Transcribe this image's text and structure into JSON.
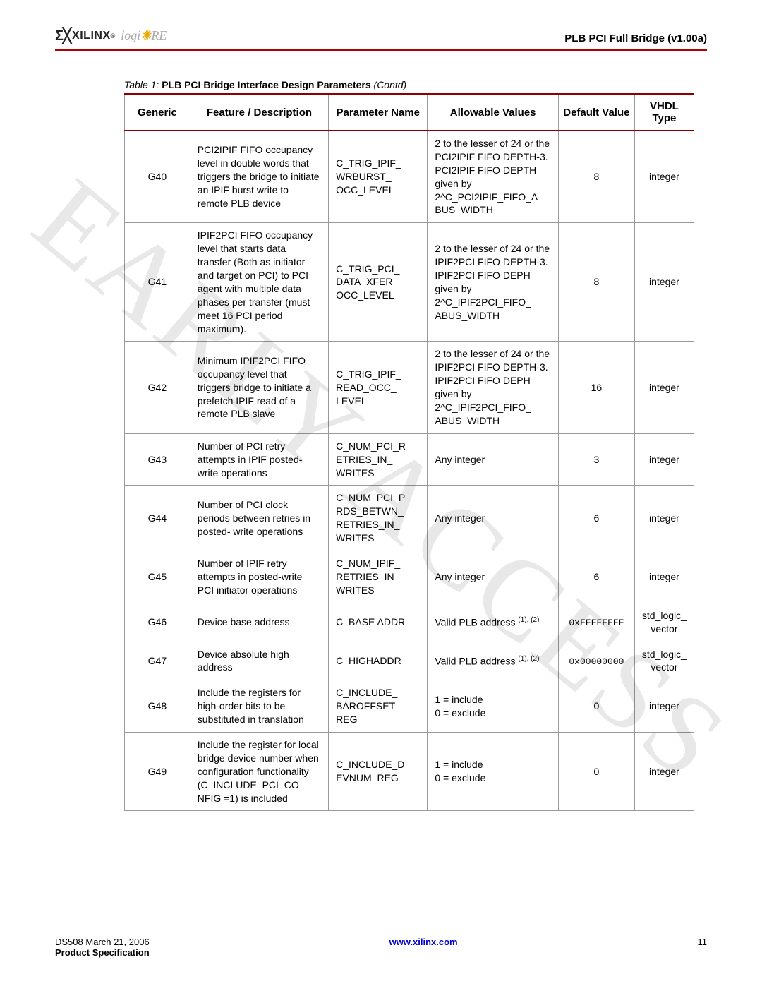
{
  "header": {
    "brand_symbol": "Σ╳",
    "brand_name": "XILINX",
    "sub_brand_prefix": "logi",
    "sub_brand_sun": "✺",
    "sub_brand_suffix": "RE",
    "doc_title": "PLB PCI Full Bridge (v1.00a)"
  },
  "watermark": "EARLY ACCESS",
  "table": {
    "caption_prefix": "Table  1:",
    "caption_title": "PLB PCI Bridge Interface Design Parameters",
    "caption_suffix": "(Contd)",
    "columns": [
      "Generic",
      "Feature / Description",
      "Parameter Name",
      "Allowable Values",
      "Default Value",
      "VHDL Type"
    ],
    "rows": [
      {
        "generic": "G40",
        "desc": "PCI2IPIF FIFO occupancy level in double words that triggers the bridge to initiate an IPIF burst write to remote PLB device",
        "name": "C_TRIG_IPIF_ WRBURST_ OCC_LEVEL",
        "allow": "2 to the lesser of 24 or the PCI2IPIF FIFO DEPTH-3. PCI2IPIF FIFO DEPTH given by 2^C_PCI2IPIF_FIFO_A BUS_WIDTH",
        "default": "8",
        "type": "integer"
      },
      {
        "generic": "G41",
        "desc": "IPIF2PCI FIFO occupancy level that starts data transfer (Both as initiator and target on PCI) to PCI agent with multiple data phases per transfer (must meet 16 PCI period maximum).",
        "name": "C_TRIG_PCI_ DATA_XFER_ OCC_LEVEL",
        "allow": "2 to the lesser of 24 or the IPIF2PCI FIFO DEPTH-3. IPIF2PCI FIFO DEPH given by 2^C_IPIF2PCI_FIFO_ ABUS_WIDTH",
        "default": "8",
        "type": "integer"
      },
      {
        "generic": "G42",
        "desc": "Minimum IPIF2PCI FIFO occupancy level that triggers bridge to initiate a prefetch IPIF read of a remote PLB slave",
        "name": "C_TRIG_IPIF_ READ_OCC_ LEVEL",
        "allow": "2 to the lesser of 24 or the IPIF2PCI FIFO DEPTH-3. IPIF2PCI FIFO DEPH given by 2^C_IPIF2PCI_FIFO_ ABUS_WIDTH",
        "default": "16",
        "type": "integer"
      },
      {
        "generic": "G43",
        "desc": "Number of PCI retry attempts in IPIF posted-write operations",
        "name": "C_NUM_PCI_R ETRIES_IN_ WRITES",
        "allow": "Any integer",
        "default": "3",
        "type": "integer"
      },
      {
        "generic": "G44",
        "desc": "Number of PCI clock periods between retries in posted- write operations",
        "name": "C_NUM_PCI_P RDS_BETWN_ RETRIES_IN_ WRITES",
        "allow": "Any integer",
        "default": "6",
        "type": "integer"
      },
      {
        "generic": "G45",
        "desc": "Number of IPIF retry attempts in posted-write PCI initiator operations",
        "name": "C_NUM_IPIF_ RETRIES_IN_ WRITES",
        "allow": "Any integer",
        "default": "6",
        "type": "integer"
      },
      {
        "generic": "G46",
        "desc": "Device base address",
        "name": "C_BASE ADDR",
        "allow_prefix": "Valid PLB address ",
        "allow_note": "(1), (2)",
        "default_mono": "0xFFFFFFFF",
        "type": "std_logic_ vector"
      },
      {
        "generic": "G47",
        "desc": "Device absolute high address",
        "name": "C_HIGHADDR",
        "allow_prefix": "Valid PLB address ",
        "allow_note": "(1), (2)",
        "default_mono": "0x00000000",
        "type": "std_logic_ vector"
      },
      {
        "generic": "G48",
        "desc": "Include the registers for high-order bits to be substituted in translation",
        "name": "C_INCLUDE_ BAROFFSET_ REG",
        "allow": "1 = include\n0 = exclude",
        "default": "0",
        "type": "integer"
      },
      {
        "generic": "G49",
        "desc": "Include the register for local bridge device number when configuration functionality (C_INCLUDE_PCI_CO NFIG =1) is included",
        "name": "C_INCLUDE_D EVNUM_REG",
        "allow": "1 = include\n0 = exclude",
        "default": "0",
        "type": "integer"
      }
    ]
  },
  "footer": {
    "doc_id": "DS508 March 21, 2006",
    "spec_label": "Product Specification",
    "url": "www.xilinx.com",
    "page_num": "11"
  }
}
